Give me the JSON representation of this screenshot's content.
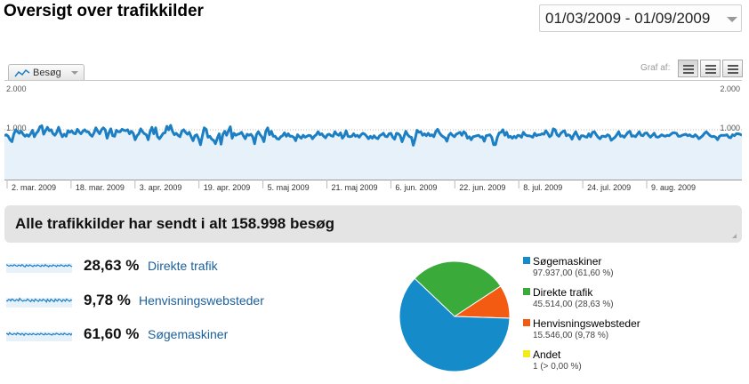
{
  "header": {
    "title": "Oversigt over trafikkilder",
    "date_range": "01/03/2009 - 01/09/2009"
  },
  "toolbar": {
    "metric_tab": "Besøg",
    "graph_by": "Graf af:"
  },
  "chart_data": {
    "type": "line",
    "ylim": [
      0,
      2000
    ],
    "y_ticks": [
      "2.000",
      "1.000"
    ],
    "x_labels": [
      "2. mar. 2009",
      "18. mar. 2009",
      "3. apr. 2009",
      "19. apr. 2009",
      "5. maj 2009",
      "21. maj 2009",
      "6. jun. 2009",
      "22. jun. 2009",
      "8. jul. 2009",
      "24. jul. 2009",
      "9. aug. 2009"
    ],
    "series": [
      {
        "color": "#1c7fc4",
        "values": [
          880,
          900,
          870,
          800,
          760,
          910,
          1000,
          960,
          930,
          970,
          910,
          870,
          900,
          870,
          920,
          990,
          860,
          930,
          970,
          1060,
          1080,
          910,
          980,
          1050,
          980,
          1000,
          920,
          890,
          950,
          1050,
          940,
          860,
          910,
          870,
          980,
          950,
          980,
          930,
          920,
          1010,
          960,
          920,
          970,
          1000,
          960,
          960,
          900,
          870,
          940,
          1040,
          970,
          920,
          1000,
          1040,
          1000,
          830,
          940,
          1020,
          880,
          870,
          990,
          960,
          960,
          1010,
          990,
          980,
          1000,
          920,
          970,
          930,
          800,
          880,
          920,
          1020,
          960,
          920,
          900,
          800,
          960,
          1050,
          920,
          1040,
          860,
          820,
          870,
          930,
          940,
          1070,
          1000,
          1090,
          970,
          900,
          930,
          890,
          860,
          970,
          1000,
          950,
          910,
          950,
          860,
          780,
          880,
          900,
          820,
          700,
          880,
          1040,
          1010,
          850,
          870,
          810,
          790,
          720,
          830,
          920,
          710,
          910,
          970,
          890,
          980,
          1060,
          830,
          930,
          890,
          910,
          920,
          950,
          880,
          820,
          910,
          890,
          910,
          860,
          720,
          900,
          960,
          900,
          850,
          760,
          970,
          1040,
          900,
          970,
          870,
          870,
          820,
          810,
          860,
          880,
          940,
          870,
          920,
          870,
          870,
          850,
          780,
          900,
          860,
          830,
          890,
          850,
          870,
          890,
          880,
          820,
          870,
          900,
          960,
          900,
          920,
          870,
          840,
          900,
          910,
          880,
          870,
          960,
          910,
          890,
          940,
          830,
          880,
          980,
          870,
          860,
          870,
          920,
          870,
          890,
          850,
          900,
          930,
          910,
          870,
          820,
          870,
          830,
          880,
          840,
          820,
          880,
          900,
          930,
          870,
          860,
          920,
          930,
          850,
          810,
          930,
          920,
          880,
          760,
          860,
          970,
          900,
          860,
          850,
          690,
          820,
          990,
          950,
          960,
          890,
          920,
          880,
          930,
          880,
          900,
          860,
          960,
          1010,
          940,
          890,
          860,
          840,
          770,
          890,
          930,
          890,
          860,
          910,
          930,
          950,
          890,
          960,
          930,
          830,
          860,
          800,
          860,
          870,
          880,
          890,
          850,
          860,
          770,
          880,
          890,
          900,
          850,
          700,
          700,
          850,
          940,
          950,
          1000,
          890,
          950,
          850,
          870,
          830,
          870,
          840,
          890,
          880,
          850,
          950,
          900,
          880,
          880,
          870,
          850,
          930,
          880,
          900,
          900,
          920,
          910,
          980,
          930,
          860,
          890,
          1020,
          1000,
          900,
          870,
          930,
          960,
          980,
          880,
          900,
          880,
          810,
          900,
          960,
          880,
          810,
          880,
          880,
          860,
          850,
          920,
          860,
          950,
          960,
          900,
          850,
          820,
          870,
          870,
          860,
          900,
          880,
          790,
          820,
          850,
          900,
          960,
          870,
          880,
          850,
          900,
          950,
          970,
          870,
          880,
          860,
          910,
          960,
          890,
          880,
          930,
          940,
          890,
          850,
          890,
          930,
          860,
          850,
          870,
          900,
          880,
          870,
          890,
          880,
          910,
          940,
          940,
          930,
          870,
          870,
          890,
          900,
          910,
          880,
          900,
          870,
          860,
          900,
          870,
          820,
          850,
          880,
          930,
          960,
          920,
          880,
          860,
          870,
          850,
          800,
          870,
          890,
          890,
          890,
          900,
          850,
          840,
          900,
          880,
          920,
          920,
          910,
          890
        ]
      }
    ]
  },
  "summary": {
    "total_text": "Alle trafikkilder har sendt i alt 158.998 besøg"
  },
  "sources": [
    {
      "pct": "28,63 %",
      "name": "Direkte trafik"
    },
    {
      "pct": "9,78 %",
      "name": "Henvisningswebsteder"
    },
    {
      "pct": "61,60 %",
      "name": "Søgemaskiner"
    }
  ],
  "pie_chart": {
    "type": "pie",
    "slices": [
      {
        "name": "Søgemaskiner",
        "value": 97937,
        "value_text": "97.937,00 (61,60 %)",
        "color": "#168bc9"
      },
      {
        "name": "Direkte trafik",
        "value": 45514,
        "value_text": "45.514,00 (28,63 %)",
        "color": "#3aaa3a"
      },
      {
        "name": "Henvisningswebsteder",
        "value": 15546,
        "value_text": "15.546,00 (9,78 %)",
        "color": "#f45b12"
      },
      {
        "name": "Andet",
        "value": 1,
        "value_text": "1 (> 0,00 %)",
        "color": "#f2ea1c"
      }
    ]
  },
  "colors": {
    "line": "#1c7fc4",
    "fill": "#e6f1fa",
    "link": "#1a5f9c"
  },
  "icons": [
    "line-chart-icon",
    "dropdown-arrow-icon",
    "graph-view-icon",
    "table-view-icon",
    "list-view-icon"
  ]
}
